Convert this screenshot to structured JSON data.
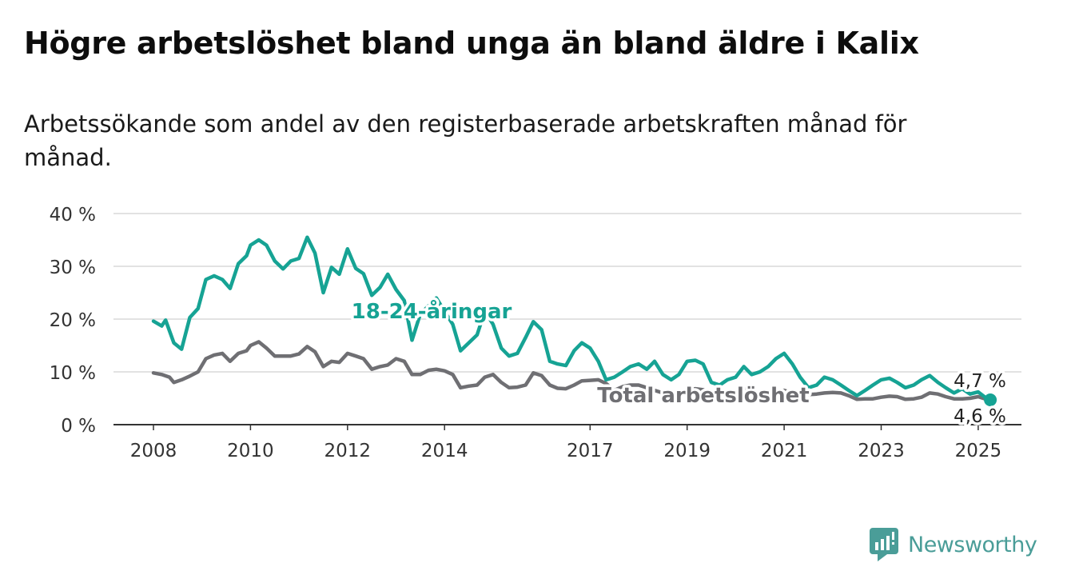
{
  "title": "Högre arbetslöshet bland unga än bland äldre i Kalix",
  "subtitle": "Arbetssökande som andel av den registerbaserade arbetskraften månad för månad.",
  "brand": "Newsworthy",
  "colors": {
    "youth": "#16a394",
    "total": "#6f6f73",
    "grid": "#d9d9d9",
    "brand": "#4a9d98"
  },
  "chart_data": {
    "type": "line",
    "y_tick_labels": [
      "0 %",
      "10 %",
      "20 %",
      "30 %",
      "40 %"
    ],
    "y_ticks": [
      0,
      10,
      20,
      30,
      40
    ],
    "ylim": [
      0,
      40
    ],
    "xlim": [
      2008.0,
      2025.3
    ],
    "x_tick_labels": [
      "2008",
      "2010",
      "2012",
      "2014",
      "2017",
      "2019",
      "2021",
      "2023",
      "2025"
    ],
    "x_ticks": [
      2008,
      2010,
      2012,
      2014,
      2017,
      2019,
      2021,
      2023,
      2025
    ],
    "grid": true,
    "series": [
      {
        "name": "18-24-åringar",
        "end_label": "4,7 %",
        "x": [
          2008.0,
          2008.17,
          2008.25,
          2008.42,
          2008.58,
          2008.75,
          2008.92,
          2009.08,
          2009.25,
          2009.42,
          2009.58,
          2009.75,
          2009.92,
          2010.0,
          2010.17,
          2010.33,
          2010.5,
          2010.67,
          2010.83,
          2011.0,
          2011.17,
          2011.33,
          2011.5,
          2011.67,
          2011.83,
          2012.0,
          2012.17,
          2012.33,
          2012.5,
          2012.67,
          2012.83,
          2013.0,
          2013.17,
          2013.33,
          2013.5,
          2013.67,
          2013.83,
          2014.0,
          2014.17,
          2014.33,
          2014.5,
          2014.67,
          2014.83,
          2015.0,
          2015.17,
          2015.33,
          2015.5,
          2015.67,
          2015.83,
          2016.0,
          2016.17,
          2016.33,
          2016.5,
          2016.67,
          2016.83,
          2017.0,
          2017.17,
          2017.33,
          2017.5,
          2017.67,
          2017.83,
          2018.0,
          2018.17,
          2018.33,
          2018.5,
          2018.67,
          2018.83,
          2019.0,
          2019.17,
          2019.33,
          2019.5,
          2019.67,
          2019.83,
          2020.0,
          2020.17,
          2020.33,
          2020.5,
          2020.67,
          2020.83,
          2021.0,
          2021.17,
          2021.33,
          2021.5,
          2021.67,
          2021.83,
          2022.0,
          2022.17,
          2022.33,
          2022.5,
          2022.67,
          2022.83,
          2023.0,
          2023.17,
          2023.33,
          2023.5,
          2023.67,
          2023.83,
          2024.0,
          2024.17,
          2024.33,
          2024.5,
          2024.67,
          2024.83,
          2025.0,
          2025.17,
          2025.25
        ],
        "values": [
          19.6,
          18.7,
          19.8,
          15.5,
          14.3,
          20.3,
          22.0,
          27.5,
          28.2,
          27.5,
          25.8,
          30.5,
          32.0,
          34.0,
          35.0,
          34.0,
          31.0,
          29.5,
          31.0,
          31.5,
          35.5,
          32.5,
          25.0,
          29.8,
          28.5,
          33.3,
          29.6,
          28.6,
          24.5,
          26.0,
          28.5,
          25.6,
          23.5,
          16.0,
          21.0,
          22.5,
          24.0,
          21.5,
          19.0,
          14.0,
          15.5,
          17.0,
          21.5,
          19.0,
          14.5,
          13.0,
          13.5,
          16.5,
          19.5,
          18.0,
          12.0,
          11.5,
          11.2,
          14.0,
          15.5,
          14.5,
          12.0,
          8.5,
          9.0,
          10.0,
          11.0,
          11.5,
          10.5,
          12.0,
          9.5,
          8.5,
          9.5,
          12.0,
          12.2,
          11.5,
          8.0,
          7.5,
          8.5,
          9.0,
          11.0,
          9.5,
          10.0,
          11.0,
          12.5,
          13.5,
          11.5,
          9.0,
          7.0,
          7.5,
          9.0,
          8.5,
          7.5,
          6.5,
          5.5,
          6.5,
          7.5,
          8.5,
          8.8,
          8.0,
          7.0,
          7.5,
          8.5,
          9.3,
          8.0,
          7.0,
          6.0,
          6.8,
          5.8,
          6.2,
          5.0,
          4.7
        ]
      },
      {
        "name": "Total arbetslöshet",
        "end_label": "4,6 %",
        "x": [
          2008.0,
          2008.17,
          2008.33,
          2008.42,
          2008.58,
          2008.75,
          2008.92,
          2009.08,
          2009.25,
          2009.42,
          2009.58,
          2009.75,
          2009.92,
          2010.0,
          2010.17,
          2010.33,
          2010.5,
          2010.67,
          2010.83,
          2011.0,
          2011.17,
          2011.33,
          2011.5,
          2011.67,
          2011.83,
          2012.0,
          2012.17,
          2012.33,
          2012.5,
          2012.67,
          2012.83,
          2013.0,
          2013.17,
          2013.33,
          2013.5,
          2013.67,
          2013.83,
          2014.0,
          2014.17,
          2014.33,
          2014.5,
          2014.67,
          2014.83,
          2015.0,
          2015.17,
          2015.33,
          2015.5,
          2015.67,
          2015.83,
          2016.0,
          2016.17,
          2016.33,
          2016.5,
          2016.67,
          2016.83,
          2017.0,
          2017.17,
          2017.33,
          2017.5,
          2017.67,
          2017.83,
          2018.0,
          2018.17,
          2018.33,
          2018.5,
          2018.67,
          2018.83,
          2019.0,
          2019.17,
          2019.33,
          2019.5,
          2019.67,
          2019.83,
          2020.0,
          2020.17,
          2020.33,
          2020.5,
          2020.67,
          2020.83,
          2021.0,
          2021.17,
          2021.33,
          2021.5,
          2021.67,
          2021.83,
          2022.0,
          2022.17,
          2022.33,
          2022.5,
          2022.67,
          2022.83,
          2023.0,
          2023.17,
          2023.33,
          2023.5,
          2023.67,
          2023.83,
          2024.0,
          2024.17,
          2024.33,
          2024.5,
          2024.67,
          2024.83,
          2025.0,
          2025.17,
          2025.25
        ],
        "values": [
          9.8,
          9.5,
          9.0,
          8.0,
          8.5,
          9.2,
          10.0,
          12.5,
          13.2,
          13.5,
          12.0,
          13.5,
          14.0,
          15.0,
          15.7,
          14.5,
          13.0,
          13.0,
          13.0,
          13.4,
          14.8,
          13.8,
          11.0,
          12.0,
          11.8,
          13.5,
          13.0,
          12.5,
          10.5,
          11.0,
          11.3,
          12.5,
          12.0,
          9.5,
          9.5,
          10.3,
          10.5,
          10.2,
          9.5,
          7.0,
          7.3,
          7.5,
          9.0,
          9.5,
          8.0,
          7.0,
          7.1,
          7.5,
          9.8,
          9.3,
          7.5,
          6.9,
          6.8,
          7.5,
          8.3,
          8.4,
          8.5,
          7.8,
          6.5,
          7.2,
          7.5,
          7.5,
          7.0,
          6.5,
          6.0,
          5.8,
          5.8,
          6.5,
          6.8,
          6.6,
          6.0,
          5.8,
          6.0,
          6.2,
          6.8,
          6.3,
          5.8,
          6.0,
          6.4,
          6.5,
          6.0,
          6.0,
          5.7,
          5.8,
          6.0,
          6.1,
          6.0,
          5.5,
          4.8,
          4.9,
          4.9,
          5.2,
          5.4,
          5.3,
          4.8,
          4.9,
          5.2,
          6.0,
          5.8,
          5.3,
          4.9,
          4.9,
          5.0,
          5.3,
          4.8,
          4.6
        ]
      }
    ]
  }
}
